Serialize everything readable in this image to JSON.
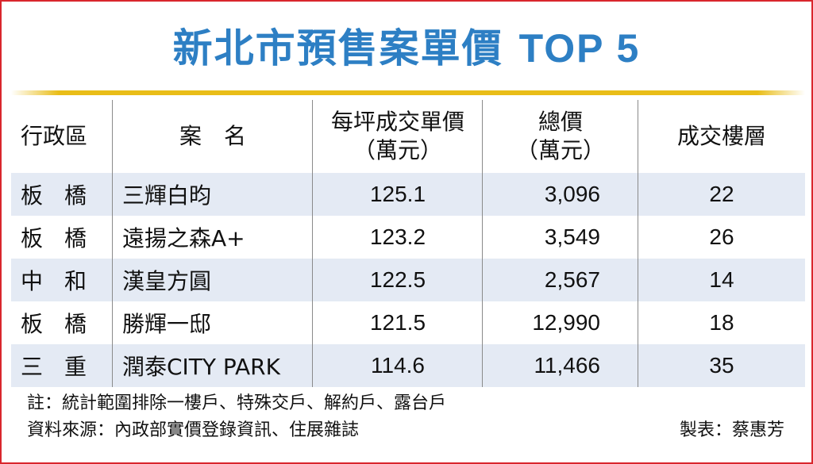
{
  "title": "新北市預售案單價",
  "title_en": "TOP 5",
  "colors": {
    "title": "#2d7fc4",
    "rule": "#e9bd18",
    "stripe": "#e4eaf4",
    "border": "#d9262c"
  },
  "table": {
    "headers": {
      "district": "行政區",
      "name": "案　名",
      "price_line1": "每坪成交單價",
      "price_line2": "（萬元）",
      "total_line1": "總價",
      "total_line2": "（萬元）",
      "floor": "成交樓層"
    },
    "rows": [
      {
        "district_a": "板",
        "district_b": "橋",
        "name": "三輝白昀",
        "price": "125.1",
        "total": "3,096",
        "floor": "22"
      },
      {
        "district_a": "板",
        "district_b": "橋",
        "name": "遠揚之森A+",
        "price": "123.2",
        "total": "3,549",
        "floor": "26"
      },
      {
        "district_a": "中",
        "district_b": "和",
        "name": "漢皇方圓",
        "price": "122.5",
        "total": "2,567",
        "floor": "14"
      },
      {
        "district_a": "板",
        "district_b": "橋",
        "name": "勝輝一邸",
        "price": "121.5",
        "total": "12,990",
        "floor": "18"
      },
      {
        "district_a": "三",
        "district_b": "重",
        "name": "潤泰CITY PARK",
        "price": "114.6",
        "total": "11,466",
        "floor": "35"
      }
    ]
  },
  "notes": {
    "note": "註：統計範圍排除一樓戶、特殊交戶、解約戶、露台戶",
    "source": "資料來源：內政部實價登錄資訊、住展雜誌",
    "credit": "製表：蔡惠芳"
  }
}
